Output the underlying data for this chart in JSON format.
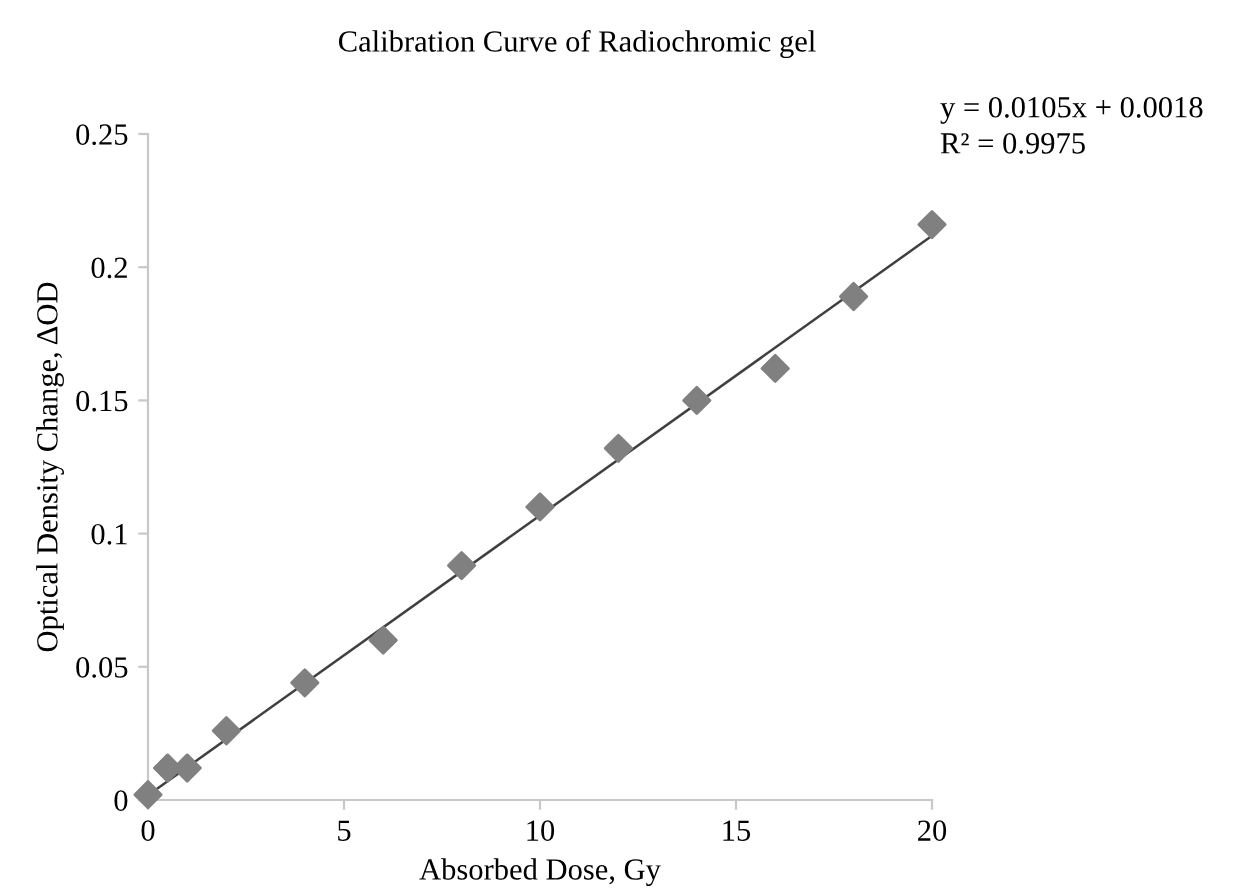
{
  "chart_data": {
    "type": "scatter",
    "title": "Calibration Curve of Radiochromic gel",
    "xlabel": "Absorbed Dose, Gy",
    "ylabel": "Optical Density Change, ΔOD",
    "series": [
      {
        "color": "#808080",
        "marker": "diamond",
        "x": [
          0,
          0.5,
          1,
          2,
          4,
          6,
          8,
          10,
          12,
          14,
          16,
          18,
          20
        ],
        "values": [
          0.002,
          0.012,
          0.012,
          0.026,
          0.044,
          0.06,
          0.088,
          0.11,
          0.132,
          0.15,
          0.162,
          0.189,
          0.216
        ]
      },
      {
        "type": "line",
        "color": "#404040",
        "marker": "none",
        "x": [
          0,
          20
        ],
        "values": [
          0.0018,
          0.2118
        ]
      }
    ],
    "annotations": [
      "y = 0.0105x + 0.0018",
      "R² = 0.9975"
    ],
    "xlim": [
      0,
      20
    ],
    "ylim": [
      0,
      0.25
    ],
    "xticks": [
      0,
      5,
      10,
      15,
      20
    ],
    "yticks": [
      0,
      0.05,
      0.1,
      0.15,
      0.2,
      0.25
    ],
    "grid": false,
    "legend": false
  }
}
